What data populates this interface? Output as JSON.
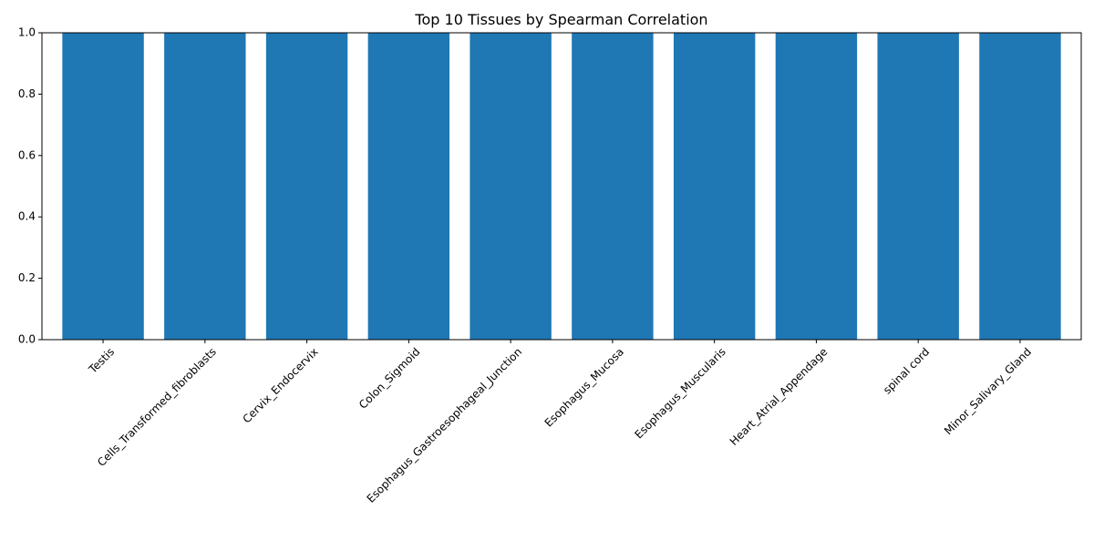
{
  "chart_data": {
    "type": "bar",
    "title": "Top 10 Tissues by Spearman Correlation",
    "xlabel": "",
    "ylabel": "",
    "categories": [
      "Testis",
      "Cells_Transformed_fibroblasts",
      "Cervix_Endocervix",
      "Colon_Sigmoid",
      "Esophagus_Gastroesophageal_Junction",
      "Esophagus_Mucosa",
      "Esophagus_Muscularis",
      "Heart_Atrial_Appendage",
      "spinal cord",
      "Minor_Salivary_Gland"
    ],
    "values": [
      1.0,
      1.0,
      1.0,
      1.0,
      1.0,
      1.0,
      1.0,
      1.0,
      1.0,
      1.0
    ],
    "ylim": [
      0,
      1.0
    ],
    "yticks": [
      0.0,
      0.2,
      0.4,
      0.6,
      0.8,
      1.0
    ],
    "ytick_labels": [
      "0.0",
      "0.2",
      "0.4",
      "0.6",
      "0.8",
      "1.0"
    ],
    "grid": false,
    "bar_color": "#1f77b4"
  }
}
